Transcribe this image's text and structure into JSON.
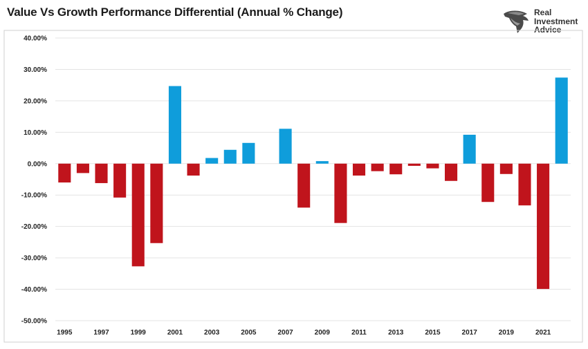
{
  "title": "Value Vs Growth Performance Differential (Annual % Change)",
  "logo": {
    "icon": "eagle-head-icon",
    "lines": [
      "Real",
      "Investment",
      "Advice"
    ]
  },
  "colors": {
    "positive": "#0f9ddb",
    "negative": "#c0141c",
    "grid": "#e3e3e3",
    "frame": "#cfcfcf"
  },
  "chart_data": {
    "type": "bar",
    "title": "Value Vs Growth Performance Differential (Annual % Change)",
    "xlabel": "",
    "ylabel": "",
    "ylim": [
      -50,
      40
    ],
    "yticks": [
      40,
      30,
      20,
      10,
      0,
      -10,
      -20,
      -30,
      -40,
      -50
    ],
    "ytick_labels": [
      "40.00%",
      "30.00%",
      "20.00%",
      "10.00%",
      "0.00%",
      "-10.00%",
      "-20.00%",
      "-30.00%",
      "-40.00%",
      "-50.00%"
    ],
    "grid": true,
    "legend": "none",
    "categories": [
      "1995",
      "1996",
      "1997",
      "1998",
      "1999",
      "2000",
      "2001",
      "2002",
      "2003",
      "2004",
      "2005",
      "2006",
      "2007",
      "2008",
      "2009",
      "2010",
      "2011",
      "2012",
      "2013",
      "2014",
      "2015",
      "2016",
      "2017",
      "2018",
      "2019",
      "2020",
      "2021",
      "2022"
    ],
    "x_tick_labels": [
      "1995",
      "1997",
      "1999",
      "2001",
      "2003",
      "2005",
      "2007",
      "2009",
      "2011",
      "2013",
      "2015",
      "2017",
      "2019",
      "2021"
    ],
    "values": [
      -6.0,
      -3.0,
      -6.2,
      -10.8,
      -32.7,
      -25.3,
      24.7,
      -3.8,
      1.8,
      4.4,
      6.6,
      0,
      11.1,
      -14.0,
      0.8,
      -18.9,
      -3.8,
      -2.4,
      -3.4,
      -0.7,
      -1.5,
      -5.5,
      9.2,
      -12.2,
      -3.3,
      -13.3,
      -39.9,
      27.4
    ]
  }
}
